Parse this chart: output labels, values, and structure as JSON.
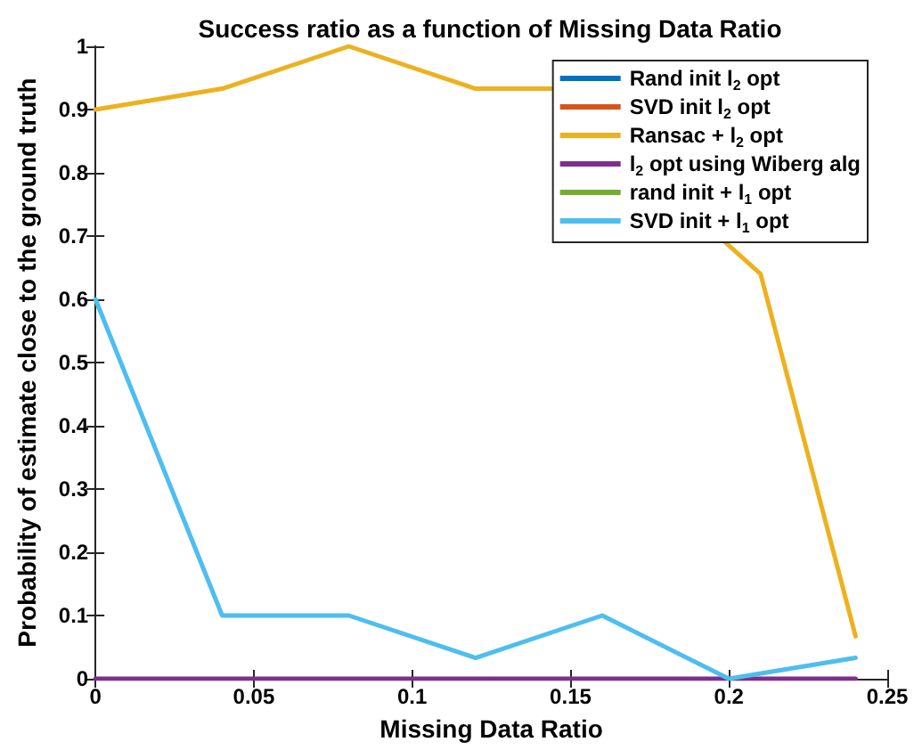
{
  "chart_data": {
    "type": "line",
    "title": "Success ratio as a function of Missing Data Ratio",
    "xlabel": "Missing Data Ratio",
    "ylabel": "Probability of estimate close to the ground truth",
    "x": [
      0,
      0.04,
      0.08,
      0.12,
      0.16,
      0.2,
      0.24
    ],
    "xlim": [
      0,
      0.25
    ],
    "xticks": [
      0,
      0.05,
      0.1,
      0.15,
      0.2,
      0.25
    ],
    "ylim": [
      0,
      1
    ],
    "yticks": [
      0,
      0.1,
      0.2,
      0.3,
      0.4,
      0.5,
      0.6,
      0.7,
      0.8,
      0.9,
      1
    ],
    "grid": false,
    "legend": "top right",
    "line_style": "solid",
    "marker": "none",
    "series": [
      {
        "name": "Rand init l$_{2}$ opt",
        "color": "#0072bd",
        "values": [
          null,
          null,
          null,
          null,
          null,
          null,
          null
        ]
      },
      {
        "name": "SVD init l$_{2}$ opt",
        "color": "#d95319",
        "values": [
          null,
          null,
          null,
          null,
          null,
          null,
          null
        ]
      },
      {
        "name": "Ransac + l$_{2}$ opt",
        "color": "#edb120",
        "x": [
          0,
          0.04,
          0.08,
          0.12,
          0.145,
          0.21,
          0.24
        ],
        "values": [
          0.9,
          0.933,
          1,
          0.933,
          0.933,
          0.64,
          0.067
        ]
      },
      {
        "name": "l$_{2}$ opt using Wiberg alg",
        "color": "#7e2f8e",
        "values": [
          0,
          0,
          0,
          0,
          0,
          0,
          0
        ]
      },
      {
        "name": "rand init + l$_{1}$ opt",
        "color": "#77ac30",
        "values": [
          null,
          null,
          null,
          null,
          null,
          null,
          null
        ]
      },
      {
        "name": "SVD init + l$_{1}$ opt",
        "color": "#4dbeee",
        "values": [
          0.6,
          0.1,
          0.1,
          0.033,
          0.1,
          0,
          0.033
        ]
      }
    ]
  }
}
